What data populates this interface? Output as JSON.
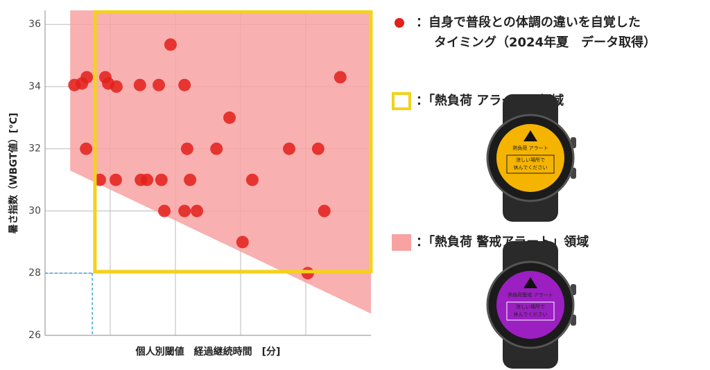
{
  "chart_data": {
    "type": "scatter",
    "ylabel": "暑さ指数（WBGT値）[℃]",
    "xlabel": "個人別閾値　経過継続時間　[分]",
    "xlim": [
      0,
      10
    ],
    "xgrid": [
      2,
      4,
      6,
      8
    ],
    "ylim": [
      26,
      36.45
    ],
    "yticks": [
      26,
      28,
      30,
      32,
      34,
      36
    ],
    "grid": true,
    "series": [
      {
        "name": "：自身で普段との体調の違いを自覚した",
        "name_line2": "タイミング（2024年夏　データ取得）",
        "color": "#e3201b",
        "x": [
          0.9,
          1.13,
          1.28,
          1.85,
          1.94,
          2.19,
          2.91,
          3.49,
          4.28,
          9.06,
          3.85,
          1.26,
          4.36,
          5.26,
          7.49,
          8.38,
          5.66,
          1.68,
          2.17,
          2.94,
          3.13,
          3.57,
          4.45,
          6.36,
          3.66,
          4.28,
          4.66,
          8.57,
          6.06,
          8.06
        ],
        "values": [
          34.05,
          34.1,
          34.3,
          34.3,
          34.1,
          34.0,
          34.05,
          34.05,
          34.05,
          34.3,
          35.35,
          32.0,
          32.0,
          32.0,
          32.0,
          32.0,
          33.0,
          31.0,
          31.0,
          31.0,
          31.0,
          31.0,
          31.0,
          31.0,
          30.0,
          30.0,
          30.0,
          30.0,
          29.0,
          28.0
        ]
      }
    ],
    "warning_zone": {
      "label": "：「熱負荷 警戒アラート」領域",
      "color": "#f8a2a2",
      "x": [
        0.77,
        10,
        10,
        0.77
      ],
      "y": [
        36.45,
        36.45,
        26.7,
        31.3
      ]
    },
    "alert_zone": {
      "label": "：「熱負荷 アラート」領域",
      "color": "#f2d21c",
      "x": [
        1.53,
        10
      ],
      "y": [
        28.05,
        36.4
      ]
    },
    "threshold": {
      "color": "#3aa0d8",
      "x": 1.45,
      "y": 28
    },
    "watches": [
      {
        "title": "熱負荷 アラート",
        "message": "涼しい場所で",
        "message2": "休んでください",
        "color": "#f5b400",
        "text_color": "#222"
      },
      {
        "title": "熱負荷警戒 アラート",
        "message": "涼しい場所で",
        "message2": "休んでください",
        "color": "#9b1fc1",
        "text_color": "#fff"
      }
    ]
  }
}
